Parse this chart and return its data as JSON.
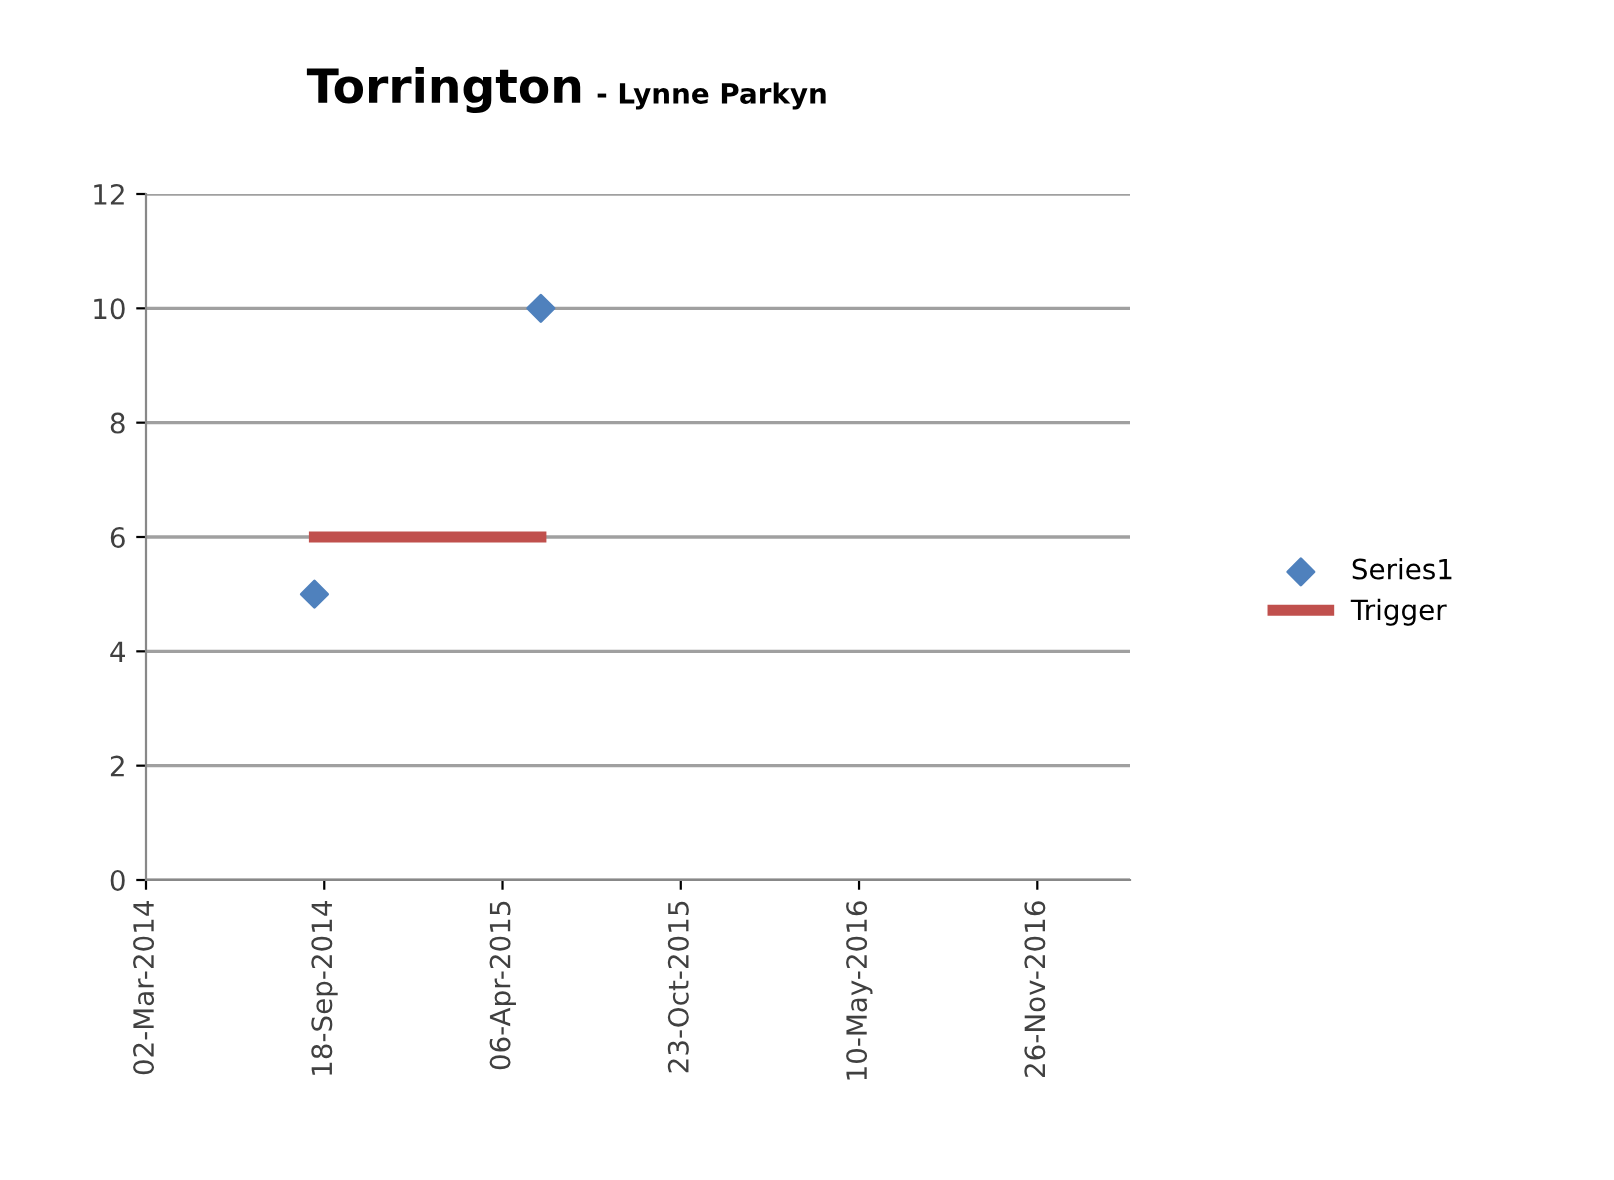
{
  "chart_data": {
    "type": "scatter",
    "title": "Torrington",
    "subtitle": "- Lynne Parkyn",
    "series": [
      {
        "name": "Series1",
        "color": "#4f81bd",
        "marker": "diamond",
        "x": [
          "2014-09-07",
          "2015-05-19"
        ],
        "values": [
          5,
          10
        ]
      },
      {
        "name": "Trigger",
        "type": "line",
        "color": "#c0504d",
        "marker": "none",
        "line_style": "solid",
        "x": [
          "2014-09-07",
          "2015-05-19"
        ],
        "values": [
          6,
          6
        ]
      }
    ],
    "xlim": [
      "2014-03-02",
      "2017-03-10"
    ],
    "xticks": [
      {
        "value": "2014-03-02",
        "label": "02-Mar-2014"
      },
      {
        "value": "2014-09-18",
        "label": "18-Sep-2014"
      },
      {
        "value": "2015-04-06",
        "label": "06-Apr-2015"
      },
      {
        "value": "2015-10-23",
        "label": "23-Oct-2015"
      },
      {
        "value": "2016-05-10",
        "label": "10-May-2016"
      },
      {
        "value": "2016-11-26",
        "label": "26-Nov-2016"
      }
    ],
    "ylim": [
      0,
      12
    ],
    "yticks": [
      0,
      2,
      4,
      6,
      8,
      10,
      12
    ],
    "grid": "y",
    "legend": "right"
  }
}
